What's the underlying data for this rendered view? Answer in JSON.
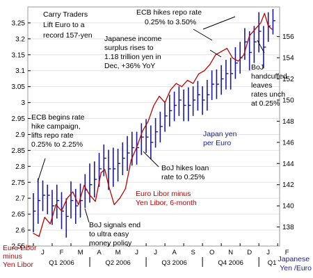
{
  "chart_data": {
    "type": "line",
    "title": "Carry Traders Lift Euro to a record 157-yen",
    "title_lines": [
      "Carry Traders",
      "Lift Euro to a",
      "record 157-yen"
    ],
    "left_axis": {
      "ylim": [
        2.55,
        3.3
      ],
      "ticks": [
        "3.25",
        "3.2",
        "3.15",
        "3.1",
        "3.05",
        "3",
        "2.95",
        "2.9",
        "2.85",
        "2.8",
        "2.75",
        "2.7",
        "2.65",
        "2.6",
        "2.55"
      ],
      "label_lines": [
        "Euro Libor",
        "minus",
        "Yen Libor"
      ]
    },
    "right_axis": {
      "ylim": [
        136.2,
        158.8
      ],
      "ticks": [
        "156",
        "154",
        "152",
        "150",
        "148",
        "146",
        "144",
        "142",
        "140",
        "138"
      ],
      "label_lines": [
        "Japanese",
        "Yen /Euro"
      ]
    },
    "x_axis": {
      "months": [
        "J",
        "F",
        "M",
        "A",
        "M",
        "J",
        "J",
        "A",
        "S",
        "O",
        "N",
        "D",
        "J",
        "F"
      ],
      "quarters": [
        "Q1 2006",
        "Q2 2006",
        "Q3 2006",
        "Q4 2006",
        "Q1"
      ]
    },
    "series": [
      {
        "name": "Euro Libor minus Yen Libor, 6-month",
        "axis": "left",
        "color": "#c00000",
        "x": [
          0,
          0.3,
          0.6,
          0.9,
          1.2,
          1.5,
          1.8,
          2.1,
          2.4,
          2.7,
          3.0,
          3.3,
          3.6,
          3.8,
          4.0,
          4.3,
          4.6,
          4.9,
          5.2,
          5.5,
          5.8,
          6.1,
          6.4,
          6.7,
          7.0,
          7.3,
          7.6,
          7.9,
          8.2,
          8.5,
          8.8,
          9.1,
          9.4,
          9.7,
          10.0,
          10.3,
          10.6,
          10.9,
          11.2,
          11.5,
          11.8,
          12.1,
          12.3,
          12.5,
          12.7
        ],
        "values": [
          2.59,
          2.58,
          2.64,
          2.62,
          2.68,
          2.66,
          2.7,
          2.72,
          2.68,
          2.74,
          2.71,
          2.69,
          2.78,
          2.79,
          2.74,
          2.68,
          2.7,
          2.73,
          2.82,
          2.86,
          2.91,
          2.94,
          2.99,
          3.02,
          3.0,
          3.04,
          3.06,
          3.05,
          3.07,
          3.06,
          3.09,
          3.1,
          3.12,
          3.15,
          3.16,
          3.17,
          3.14,
          3.13,
          3.15,
          3.21,
          3.23,
          3.25,
          3.28,
          3.24,
          3.23
        ]
      },
      {
        "name": "Japan yen per Euro",
        "axis": "right",
        "color": "#1a1a99",
        "type": "hlc",
        "x": [
          0,
          0.25,
          0.5,
          0.75,
          1.0,
          1.25,
          1.5,
          1.75,
          2.0,
          2.25,
          2.5,
          2.75,
          3.0,
          3.25,
          3.5,
          3.75,
          4.0,
          4.25,
          4.5,
          4.75,
          5.0,
          5.25,
          5.5,
          5.75,
          6.0,
          6.25,
          6.5,
          6.75,
          7.0,
          7.25,
          7.5,
          7.75,
          8.0,
          8.25,
          8.5,
          8.75,
          9.0,
          9.25,
          9.5,
          9.75,
          10.0,
          10.25,
          10.5,
          10.75,
          11.0,
          11.25,
          11.5,
          11.75,
          12.0,
          12.25,
          12.5,
          12.75
        ],
        "values": [
          139.5,
          140.5,
          141.0,
          141.0,
          140.0,
          140.5,
          139.5,
          139.0,
          140.5,
          140.0,
          140.5,
          141.5,
          142.0,
          142.5,
          143.5,
          144.5,
          143.5,
          143.5,
          144.0,
          144.5,
          145.0,
          145.5,
          145.5,
          146.5,
          146.5,
          146.0,
          147.0,
          147.5,
          148.5,
          149.0,
          149.5,
          150.0,
          149.5,
          149.5,
          150.0,
          150.5,
          150.0,
          150.5,
          151.5,
          151.5,
          152.0,
          152.5,
          152.5,
          153.5,
          154.0,
          155.5,
          154.5,
          155.5,
          156.5,
          155.0,
          157.0,
          157.5
        ],
        "high": [
          141.2,
          142.6,
          142.4,
          142.0,
          141.5,
          142.0,
          141.3,
          140.7,
          142.3,
          141.6,
          142.1,
          143.0,
          144.0,
          144.2,
          145.0,
          145.8,
          145.3,
          145.5,
          145.4,
          146.0,
          146.6,
          147.0,
          147.0,
          147.8,
          148.2,
          147.6,
          148.3,
          148.9,
          149.9,
          150.5,
          150.8,
          151.3,
          151.0,
          151.2,
          151.3,
          151.8,
          151.3,
          151.9,
          152.8,
          152.9,
          153.3,
          153.8,
          154.0,
          155.0,
          155.5,
          156.8,
          156.5,
          157.0,
          158.3,
          157.0,
          158.3,
          158.6
        ],
        "low": [
          137.5,
          138.3,
          139.5,
          139.2,
          138.2,
          138.8,
          137.8,
          137.0,
          138.8,
          138.3,
          138.9,
          139.8,
          140.3,
          140.8,
          141.8,
          142.8,
          141.5,
          141.8,
          142.3,
          142.9,
          143.3,
          143.8,
          143.9,
          144.8,
          145.0,
          144.4,
          145.5,
          146.0,
          147.0,
          147.5,
          148.0,
          148.5,
          148.0,
          148.0,
          148.5,
          149.0,
          148.6,
          149.0,
          150.0,
          150.1,
          150.5,
          151.0,
          151.0,
          152.0,
          152.5,
          153.8,
          152.8,
          153.5,
          154.5,
          153.0,
          155.5,
          156.2
        ]
      }
    ],
    "annotations": {
      "ecb_begins": [
        "ECB begins rate",
        "hike campaign,",
        "lifts repo rate",
        "0.25% to 2.25%"
      ],
      "ecb_hikes": [
        "ECB hikes repo rate",
        "0.25% to 3.50%"
      ],
      "jp_income": [
        "Japanese income",
        "surplus rises to",
        "1.18 trillion yen in",
        "Dec, +36% YoY"
      ],
      "boj_handcuffed": [
        "BoJ",
        "handcuffed",
        "leaves",
        "rates unch",
        "at 0.25%"
      ],
      "japan_yen": [
        "Japan yen",
        "per Euro"
      ],
      "boj_hikes_loan": [
        "BoJ hikes loan",
        "rate to 0.25%"
      ],
      "euro_libor": [
        "Euro Libor minus",
        "Yen Libor, 6-month"
      ],
      "boj_signals": [
        "BoJ signals end",
        "to ultra easy",
        "money policy"
      ]
    }
  }
}
